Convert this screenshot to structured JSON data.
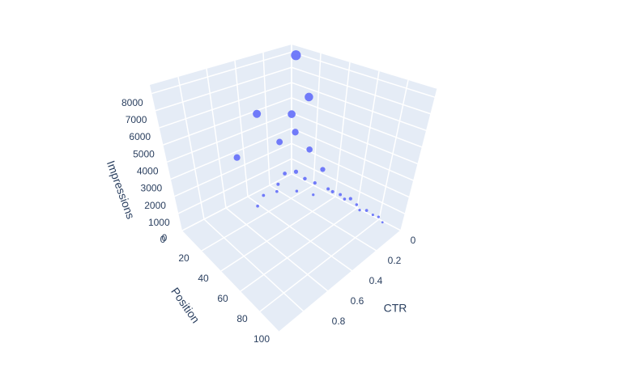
{
  "chart_data": {
    "type": "scatter3d",
    "x_title": "CTR",
    "y_title": "Position",
    "z_title": "Impressions",
    "color": "#636efa",
    "xlim": [
      0,
      1
    ],
    "xticks": [
      0,
      0.2,
      0.4,
      0.6,
      0.8
    ],
    "ylim": [
      0,
      100
    ],
    "yticks": [
      0,
      20,
      40,
      60,
      80,
      100
    ],
    "zlim": [
      0,
      8500
    ],
    "zticks": [
      0,
      1000,
      2000,
      3000,
      4000,
      5000,
      6000,
      7000,
      8000
    ],
    "x": [
      0.02,
      0.02,
      0.1,
      0.3,
      0.5,
      0.15,
      0.05,
      0.05,
      0.03,
      0.08,
      0.12,
      0.06,
      0.04,
      0.02,
      0.03,
      0.01,
      0.02,
      0.02,
      0.01,
      0.03,
      0.02,
      0.01,
      0.01,
      0.02,
      0.2,
      0.25,
      0.35,
      0.15,
      0.1,
      0.45
    ],
    "y": [
      5,
      15,
      10,
      3,
      5,
      5,
      8,
      20,
      30,
      12,
      6,
      18,
      25,
      35,
      40,
      45,
      50,
      55,
      60,
      65,
      70,
      75,
      80,
      85,
      8,
      12,
      10,
      20,
      30,
      15
    ],
    "z": [
      8000,
      5600,
      4600,
      5000,
      3000,
      2800,
      3200,
      2500,
      1500,
      900,
      700,
      600,
      500,
      400,
      450,
      350,
      300,
      500,
      250,
      200,
      300,
      150,
      200,
      100,
      400,
      300,
      350,
      250,
      200,
      300
    ]
  }
}
